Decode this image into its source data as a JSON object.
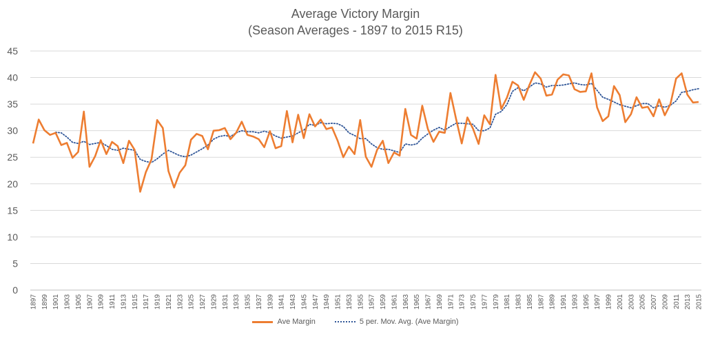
{
  "chart_data": {
    "type": "line",
    "title": "Average Victory Margin",
    "subtitle": "(Season Averages - 1897 to 2015 R15)",
    "xlabel": "",
    "ylabel": "",
    "ylim": [
      0,
      45
    ],
    "yticks": [
      0,
      5,
      10,
      15,
      20,
      25,
      30,
      35,
      40,
      45
    ],
    "grid": "horizontal",
    "legend_position": "bottom",
    "x_start": 1897,
    "x_end": 2015,
    "x_tick_labels": [
      "1897",
      "1899",
      "1901",
      "1903",
      "1905",
      "1907",
      "1909",
      "1911",
      "1913",
      "1915",
      "1917",
      "1919",
      "1921",
      "1923",
      "1925",
      "1927",
      "1929",
      "1931",
      "1933",
      "1935",
      "1937",
      "1939",
      "1941",
      "1943",
      "1945",
      "1947",
      "1949",
      "1951",
      "1953",
      "1955",
      "1957",
      "1959",
      "1961",
      "1963",
      "1965",
      "1967",
      "1969",
      "1971",
      "1973",
      "1975",
      "1977",
      "1979",
      "1981",
      "1983",
      "1985",
      "1987",
      "1989",
      "1991",
      "1993",
      "1995",
      "1997",
      "1999",
      "2001",
      "2003",
      "2005",
      "2007",
      "2009",
      "2011",
      "2013",
      "2015"
    ],
    "colors": {
      "ave_margin": "#ED7D31",
      "moving_avg": "#2F5597",
      "grid": "#D9D9D9"
    },
    "series": [
      {
        "name": "Ave Margin",
        "style": "solid",
        "values": [
          27.6,
          32.1,
          30.1,
          29.2,
          29.6,
          27.3,
          27.7,
          24.9,
          26.0,
          33.6,
          23.2,
          25.2,
          28.2,
          25.6,
          27.9,
          27.1,
          23.9,
          28.1,
          26.4,
          18.5,
          22.2,
          24.6,
          32.0,
          30.5,
          22.4,
          19.3,
          22.1,
          23.5,
          28.3,
          29.4,
          29.0,
          26.5,
          30.0,
          30.1,
          30.5,
          28.4,
          29.6,
          31.7,
          29.2,
          28.9,
          28.4,
          26.9,
          29.9,
          26.7,
          27.1,
          33.7,
          27.8,
          33.0,
          28.6,
          33.1,
          30.8,
          32.1,
          30.3,
          30.6,
          28.1,
          25.0,
          27.0,
          25.6,
          32.0,
          25.1,
          23.2,
          26.4,
          28.1,
          23.9,
          25.9,
          25.3,
          34.1,
          29.2,
          28.5,
          34.7,
          30.3,
          27.9,
          29.8,
          29.6,
          37.1,
          32.2,
          27.6,
          32.5,
          30.4,
          27.5,
          32.9,
          31.2,
          40.5,
          34.1,
          36.2,
          39.2,
          38.5,
          35.8,
          38.6,
          41.0,
          39.8,
          36.6,
          36.8,
          39.6,
          40.6,
          40.4,
          37.8,
          37.3,
          37.4,
          40.8,
          34.4,
          31.8,
          32.7,
          38.4,
          36.7,
          31.6,
          33.1,
          36.3,
          34.3,
          34.5,
          32.7,
          35.9,
          32.9,
          35.0,
          39.8,
          40.8,
          36.8,
          35.3,
          35.4
        ],
        "moving_average_values": [
          null,
          null,
          null,
          null,
          29.7,
          29.6,
          28.8,
          27.8,
          27.6,
          28.0,
          27.4,
          27.6,
          27.8,
          27.2,
          26.5,
          26.3,
          26.7,
          26.5,
          26.3,
          24.6,
          24.2,
          24.0,
          24.7,
          25.6,
          26.3,
          25.8,
          25.3,
          25.1,
          25.4,
          26.0,
          26.6,
          27.3,
          28.4,
          28.9,
          29.1,
          28.9,
          29.6,
          30.0,
          29.8,
          29.8,
          29.6,
          29.9,
          29.6,
          29.0,
          28.6,
          28.8,
          29.0,
          29.6,
          30.1,
          31.2,
          31.0,
          31.5,
          31.3,
          31.4,
          31.3,
          30.8,
          29.6,
          29.1,
          28.5,
          28.5,
          27.5,
          26.8,
          26.5,
          26.5,
          26.2,
          25.9,
          27.5,
          27.3,
          27.5,
          28.6,
          29.4,
          30.1,
          30.6,
          30.1,
          30.8,
          31.4,
          31.4,
          31.3,
          31.2,
          30.0,
          30.0,
          30.5,
          33.1,
          33.6,
          34.9,
          37.4,
          38.1,
          37.5,
          38.2,
          39.0,
          38.8,
          38.2,
          38.5,
          38.5,
          38.6,
          38.8,
          39.0,
          38.7,
          38.6,
          38.9,
          37.6,
          36.3,
          35.9,
          35.4,
          34.9,
          34.6,
          34.3,
          34.7,
          35.1,
          35.1,
          34.3,
          34.7,
          34.4,
          34.8,
          35.6,
          37.2,
          37.4,
          37.7,
          37.9
        ]
      },
      {
        "name": "5 per. Mov. Avg. (Ave Margin)",
        "style": "dotted"
      }
    ]
  }
}
